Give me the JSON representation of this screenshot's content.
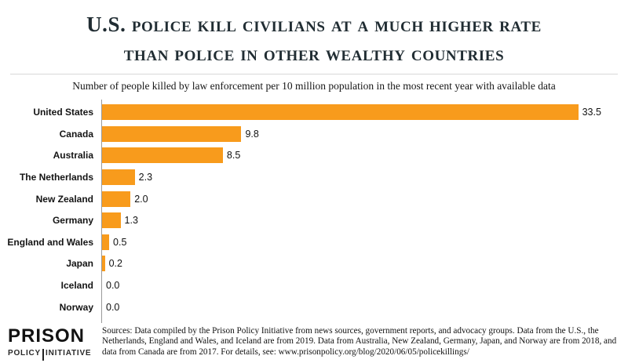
{
  "header": {
    "title_line1": "U.S. police kill civilians at a much higher rate",
    "title_line2": "than police in other wealthy countries",
    "subtitle": "Number of people killed by law enforcement per 10 million population in the most recent year with available data"
  },
  "chart_data": {
    "type": "bar",
    "orientation": "horizontal",
    "title": "U.S. police kill civilians at a much higher rate than police in other wealthy countries",
    "subtitle": "Number of people killed by law enforcement per 10 million population in the most recent year with available data",
    "categories": [
      "United States",
      "Canada",
      "Australia",
      "The Netherlands",
      "New Zealand",
      "Germany",
      "England and Wales",
      "Japan",
      "Iceland",
      "Norway"
    ],
    "values": [
      33.5,
      9.8,
      8.5,
      2.3,
      2.0,
      1.3,
      0.5,
      0.2,
      0.0,
      0.0
    ],
    "value_labels": [
      "33.5",
      "9.8",
      "8.5",
      "2.3",
      "2.0",
      "1.3",
      "0.5",
      "0.2",
      "0.0",
      "0.0"
    ],
    "xlim": [
      0,
      37
    ],
    "bar_color": "#f89b1c",
    "grid": false,
    "legend": "none",
    "value_labels_position": "outside-end"
  },
  "footer": {
    "logo_line1": "PRISON",
    "logo_line2_left": "POLICY",
    "logo_line2_right": "INITIATIVE",
    "sources": "Sources: Data compiled by the Prison Policy Initiative from news sources, government reports, and advocacy groups. Data from the U.S., the Netherlands, England and Wales, and Iceland are from 2019. Data from Australia, New Zealand, Germany, Japan, and Norway are from 2018, and data from Canada are from 2017. For details,  see: www.prisonpolicy.org/blog/2020/06/05/policekillings/"
  },
  "colors": {
    "bar": "#f89b1c",
    "title": "#212d33",
    "axis": "#9a9a9a"
  }
}
